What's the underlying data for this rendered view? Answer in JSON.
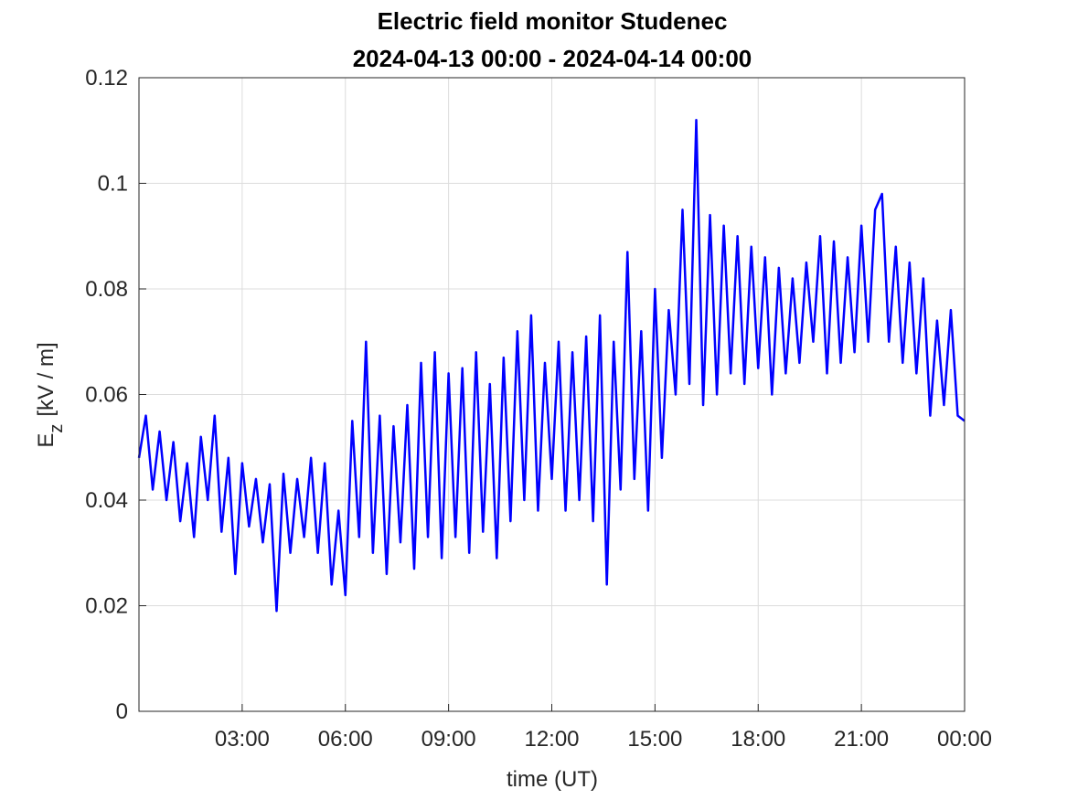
{
  "chart_data": {
    "type": "line",
    "title": "Electric field monitor Studenec",
    "subtitle": "2024-04-13 00:00 - 2024-04-14 00:00",
    "xlabel": "time (UT)",
    "ylabel": {
      "main": "E",
      "sub": "z",
      "unit": "[kV / m]"
    },
    "color": "#0000ff",
    "grid": true,
    "xlim": [
      0,
      24
    ],
    "xticks": [
      {
        "value": 3,
        "label": "03:00"
      },
      {
        "value": 6,
        "label": "06:00"
      },
      {
        "value": 9,
        "label": "09:00"
      },
      {
        "value": 12,
        "label": "12:00"
      },
      {
        "value": 15,
        "label": "15:00"
      },
      {
        "value": 18,
        "label": "18:00"
      },
      {
        "value": 21,
        "label": "21:00"
      },
      {
        "value": 24,
        "label": "00:00"
      }
    ],
    "ylim": [
      0,
      0.12
    ],
    "yticks": [
      0,
      0.02,
      0.04,
      0.06,
      0.08,
      0.1,
      0.12
    ],
    "x": [
      0,
      0.2,
      0.4,
      0.6,
      0.8,
      1,
      1.2,
      1.4,
      1.6,
      1.8,
      2,
      2.2,
      2.4,
      2.6,
      2.8,
      3,
      3.2,
      3.4,
      3.6,
      3.8,
      4,
      4.2,
      4.4,
      4.6,
      4.8,
      5,
      5.2,
      5.4,
      5.6,
      5.8,
      6,
      6.2,
      6.4,
      6.6,
      6.8,
      7,
      7.2,
      7.4,
      7.6,
      7.8,
      8,
      8.2,
      8.4,
      8.6,
      8.8,
      9,
      9.2,
      9.4,
      9.6,
      9.8,
      10,
      10.2,
      10.4,
      10.6,
      10.8,
      11,
      11.2,
      11.4,
      11.6,
      11.8,
      12,
      12.2,
      12.4,
      12.6,
      12.8,
      13,
      13.2,
      13.4,
      13.6,
      13.8,
      14,
      14.2,
      14.4,
      14.6,
      14.8,
      15,
      15.2,
      15.4,
      15.6,
      15.8,
      16,
      16.2,
      16.4,
      16.6,
      16.8,
      17,
      17.2,
      17.4,
      17.6,
      17.8,
      18,
      18.2,
      18.4,
      18.6,
      18.8,
      19,
      19.2,
      19.4,
      19.6,
      19.8,
      20,
      20.2,
      20.4,
      20.6,
      20.8,
      21,
      21.2,
      21.4,
      21.6,
      21.8,
      22,
      22.2,
      22.4,
      22.6,
      22.8,
      23,
      23.2,
      23.4,
      23.6,
      23.8,
      24
    ],
    "values": [
      0.048,
      0.056,
      0.042,
      0.053,
      0.04,
      0.051,
      0.036,
      0.047,
      0.033,
      0.052,
      0.04,
      0.056,
      0.034,
      0.048,
      0.026,
      0.047,
      0.035,
      0.044,
      0.032,
      0.043,
      0.019,
      0.045,
      0.03,
      0.044,
      0.033,
      0.048,
      0.03,
      0.047,
      0.024,
      0.038,
      0.022,
      0.055,
      0.033,
      0.07,
      0.03,
      0.056,
      0.026,
      0.054,
      0.032,
      0.058,
      0.027,
      0.066,
      0.033,
      0.068,
      0.029,
      0.064,
      0.033,
      0.065,
      0.03,
      0.068,
      0.034,
      0.062,
      0.029,
      0.067,
      0.036,
      0.072,
      0.04,
      0.075,
      0.038,
      0.066,
      0.044,
      0.07,
      0.038,
      0.068,
      0.04,
      0.071,
      0.036,
      0.075,
      0.024,
      0.07,
      0.042,
      0.087,
      0.044,
      0.072,
      0.038,
      0.08,
      0.048,
      0.076,
      0.06,
      0.095,
      0.062,
      0.112,
      0.058,
      0.094,
      0.06,
      0.092,
      0.064,
      0.09,
      0.062,
      0.088,
      0.065,
      0.086,
      0.06,
      0.084,
      0.064,
      0.082,
      0.066,
      0.085,
      0.07,
      0.09,
      0.064,
      0.089,
      0.066,
      0.086,
      0.068,
      0.092,
      0.07,
      0.095,
      0.098,
      0.07,
      0.088,
      0.066,
      0.085,
      0.064,
      0.082,
      0.056,
      0.074,
      0.058,
      0.076,
      0.056,
      0.055
    ]
  }
}
